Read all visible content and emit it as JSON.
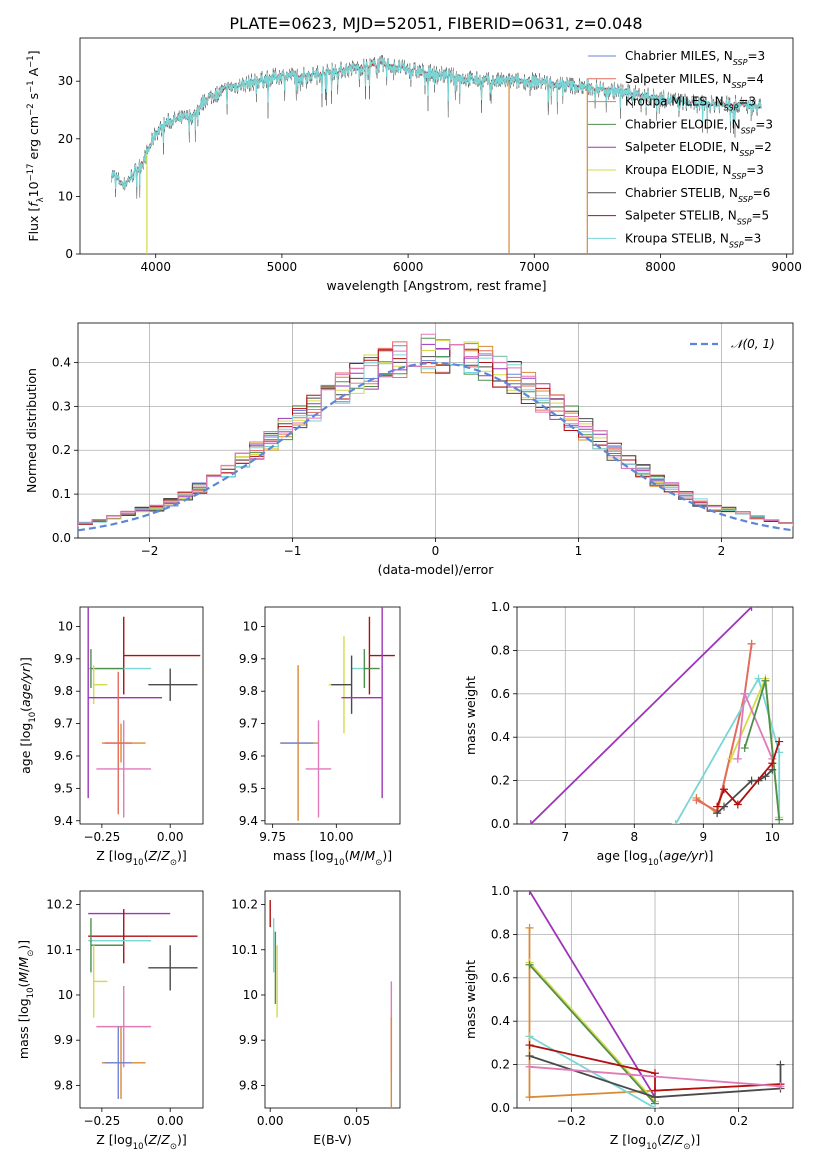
{
  "figure": {
    "title": "PLATE=0623, MJD=52051, FIBERID=0631, z=0.048"
  },
  "colors": {
    "Chabrier MILES": "#6f86d8",
    "Salpeter MILES": "#e56a5e",
    "Kroupa MILES": "#d98a35",
    "Chabrier ELODIE": "#4e8f4e",
    "Salpeter ELODIE": "#9d35b8",
    "Kroupa ELODIE": "#d6d94a",
    "Chabrier STELIB": "#4a4a4a",
    "Salpeter STELIB": "#b01010",
    "Kroupa STELIB": "#7ad6d6",
    "pink": "#e07ab8",
    "normal": "#5c86d8"
  },
  "chart_data": [
    {
      "id": "spectrum",
      "type": "line",
      "xlabel": "wavelength [Angstrom, rest frame]",
      "ylabel": "Flux [f_λ 10^-17 erg cm^-2 s^-1 A^-1]",
      "xlim": [
        3400,
        9050
      ],
      "ylim": [
        0,
        37.5
      ],
      "xticks": [
        4000,
        5000,
        6000,
        7000,
        8000,
        9000
      ],
      "yticks": [
        0,
        10,
        20,
        30
      ],
      "x_range": [
        3650,
        8800
      ],
      "continuum": [
        [
          3650,
          14
        ],
        [
          3750,
          12
        ],
        [
          3900,
          16
        ],
        [
          4000,
          21
        ],
        [
          4100,
          23
        ],
        [
          4300,
          24
        ],
        [
          4400,
          27
        ],
        [
          4600,
          29
        ],
        [
          4800,
          30
        ],
        [
          5000,
          31
        ],
        [
          5200,
          31
        ],
        [
          5500,
          32
        ],
        [
          5800,
          33
        ],
        [
          6000,
          32
        ],
        [
          6300,
          31
        ],
        [
          6600,
          30
        ],
        [
          7000,
          30
        ],
        [
          7400,
          29
        ],
        [
          7600,
          28.5
        ],
        [
          8000,
          27
        ],
        [
          8300,
          26
        ],
        [
          8600,
          26
        ],
        [
          8800,
          25.5
        ]
      ],
      "legend": [
        {
          "label": "Chabrier MILES, N",
          "sub": "SSP",
          "tail": "=3",
          "color": "#6f86d8"
        },
        {
          "label": "Salpeter MILES, N",
          "sub": "SSP",
          "tail": "=4",
          "color": "#e56a5e"
        },
        {
          "label": "Kroupa MILES, N",
          "sub": "SSP",
          "tail": "=3",
          "color": "#d98a35"
        },
        {
          "label": "Chabrier ELODIE, N",
          "sub": "SSP",
          "tail": "=3",
          "color": "#4e8f4e"
        },
        {
          "label": "Salpeter ELODIE, N",
          "sub": "SSP",
          "tail": "=2",
          "color": "#9d35b8"
        },
        {
          "label": "Kroupa ELODIE, N",
          "sub": "SSP",
          "tail": "=3",
          "color": "#d6d94a"
        },
        {
          "label": "Chabrier STELIB, N",
          "sub": "SSP",
          "tail": "=6",
          "color": "#4a4a4a"
        },
        {
          "label": "Salpeter STELIB, N",
          "sub": "SSP",
          "tail": "=5",
          "color": "#b01010"
        },
        {
          "label": "Kroupa STELIB, N",
          "sub": "SSP",
          "tail": "=3",
          "color": "#7ad6d6"
        }
      ],
      "dropouts": [
        {
          "x": 3930,
          "color": "#d6d94a"
        },
        {
          "x": 6800,
          "color": "#d98a35"
        },
        {
          "x": 7420,
          "color": "#d98a35"
        }
      ]
    },
    {
      "id": "residuals",
      "type": "histogram",
      "xlabel": "(data-model)/error",
      "ylabel": "Normed distribution",
      "xlim": [
        -2.5,
        2.5
      ],
      "ylim": [
        0,
        0.49
      ],
      "xticks": [
        -2,
        -1,
        0,
        1,
        2
      ],
      "yticks": [
        0.0,
        0.1,
        0.2,
        0.3,
        0.4
      ],
      "bin_width": 0.1,
      "legend_label": "𝒩(0, 1)",
      "grid": true
    },
    {
      "id": "age_vs_Z",
      "type": "errorbar",
      "xlabel": "Z [log10(Z/Z⊙)]",
      "ylabel": "age [log10(age/yr)]",
      "xlim": [
        -0.33,
        0.12
      ],
      "ylim": [
        9.39,
        10.06
      ],
      "xticks": [
        -0.25,
        0.0
      ],
      "xticklabels": [
        "−0.25",
        "0.00"
      ],
      "yticks": [
        9.4,
        9.5,
        9.6,
        9.7,
        9.8,
        9.9,
        10.0
      ],
      "points": [
        {
          "x": -0.17,
          "y": 9.91,
          "xerr": [
            0.0,
            0.28
          ],
          "yerr": 0.12,
          "color": "#b01010"
        },
        {
          "x": -0.27,
          "y": 9.87,
          "xerr": [
            0.03,
            0.2
          ],
          "yerr": 0.0,
          "color": "#7ad6d6"
        },
        {
          "x": -0.29,
          "y": 9.87,
          "xerr": [
            0.0,
            0.12
          ],
          "yerr": 0.06,
          "color": "#4e8f4e"
        },
        {
          "x": -0.28,
          "y": 9.82,
          "xerr": [
            0.0,
            0.05
          ],
          "yerr": 0.06,
          "color": "#d6d94a"
        },
        {
          "x": 0.0,
          "y": 9.82,
          "xerr": [
            0.08,
            0.1
          ],
          "yerr": 0.05,
          "color": "#4a4a4a"
        },
        {
          "x": -0.3,
          "y": 9.78,
          "xerr": [
            0.0,
            0.27
          ],
          "yerr": 0.31,
          "color": "#9d35b8"
        },
        {
          "x": -0.18,
          "y": 9.64,
          "xerr": [
            0.07,
            0.09
          ],
          "yerr": 0.06,
          "color": "#d98a35"
        },
        {
          "x": -0.17,
          "y": 9.56,
          "xerr": [
            0.1,
            0.1
          ],
          "yerr": 0.15,
          "color": "#e07ab8"
        },
        {
          "x": -0.19,
          "y": 9.64,
          "xerr": [
            0.05,
            0.05
          ],
          "yerr": 0.22,
          "color": "#e56a5e"
        }
      ]
    },
    {
      "id": "age_vs_mass",
      "type": "errorbar",
      "xlabel": "mass [log10(M/M⊙)]",
      "ylabel": "",
      "xlim": [
        9.72,
        10.25
      ],
      "ylim": [
        9.39,
        10.06
      ],
      "xticks": [
        9.75,
        10.0
      ],
      "xticklabels": [
        "9.75",
        "10.00"
      ],
      "yticks": [
        9.4,
        9.5,
        9.6,
        9.7,
        9.8,
        9.9,
        10.0
      ],
      "points": [
        {
          "x": 10.13,
          "y": 9.91,
          "xerr": [
            0.0,
            0.1
          ],
          "yerr": 0.12,
          "color": "#b01010"
        },
        {
          "x": 10.12,
          "y": 9.87,
          "xerr": [
            0.06,
            0.0
          ],
          "yerr": 0.0,
          "color": "#7ad6d6"
        },
        {
          "x": 10.11,
          "y": 9.87,
          "xerr": [
            0.0,
            0.06
          ],
          "yerr": 0.06,
          "color": "#4e8f4e"
        },
        {
          "x": 10.03,
          "y": 9.82,
          "xerr": [
            0.06,
            0.0
          ],
          "yerr": 0.15,
          "color": "#d6d94a"
        },
        {
          "x": 10.06,
          "y": 9.82,
          "xerr": [
            0.08,
            0.0
          ],
          "yerr": 0.09,
          "color": "#4a4a4a"
        },
        {
          "x": 10.18,
          "y": 9.78,
          "xerr": [
            0.16,
            0.0
          ],
          "yerr": 0.31,
          "color": "#9d35b8"
        },
        {
          "x": 9.85,
          "y": 9.64,
          "xerr": [
            0.07,
            0.08
          ],
          "yerr": 0.24,
          "color": "#d98a35"
        },
        {
          "x": 9.93,
          "y": 9.56,
          "xerr": [
            0.05,
            0.05
          ],
          "yerr": 0.15,
          "color": "#e07ab8"
        },
        {
          "x": 9.85,
          "y": 9.64,
          "xerr": [
            0.07,
            0.06
          ],
          "yerr": 0.0,
          "color": "#6f86d8"
        }
      ]
    },
    {
      "id": "weight_vs_age",
      "type": "line",
      "xlabel": "age [log10(age/yr)]",
      "ylabel": "mass weight",
      "xlim": [
        6.3,
        10.3
      ],
      "ylim": [
        0,
        1.0
      ],
      "xticks": [
        7,
        8,
        9,
        10
      ],
      "yticks": [
        0.0,
        0.2,
        0.4,
        0.6,
        0.8,
        1.0
      ],
      "grid": true,
      "series": [
        {
          "color": "#9d35b8",
          "points": [
            [
              6.5,
              0.0
            ],
            [
              9.7,
              1.0
            ]
          ]
        },
        {
          "color": "#d98a35",
          "points": [
            [
              8.9,
              0.12
            ],
            [
              9.2,
              0.05
            ],
            [
              9.6,
              0.6
            ],
            [
              9.7,
              0.83
            ]
          ]
        },
        {
          "color": "#e56a5e",
          "points": [
            [
              8.9,
              0.11
            ],
            [
              9.2,
              0.06
            ],
            [
              9.6,
              0.6
            ],
            [
              9.7,
              0.83
            ]
          ]
        },
        {
          "color": "#7ad6d6",
          "points": [
            [
              8.6,
              0.0
            ],
            [
              9.8,
              0.67
            ],
            [
              10.1,
              0.33
            ],
            [
              10.1,
              0.03
            ]
          ]
        },
        {
          "color": "#d6d94a",
          "points": [
            [
              9.4,
              0.3
            ],
            [
              9.9,
              0.67
            ],
            [
              10.1,
              0.03
            ]
          ]
        },
        {
          "color": "#e07ab8",
          "points": [
            [
              9.5,
              0.3
            ],
            [
              9.6,
              0.6
            ],
            [
              10.0,
              0.3
            ]
          ]
        },
        {
          "color": "#4e8f4e",
          "points": [
            [
              9.6,
              0.35
            ],
            [
              9.9,
              0.66
            ],
            [
              10.1,
              0.02
            ]
          ]
        },
        {
          "color": "#4a4a4a",
          "points": [
            [
              9.2,
              0.05
            ],
            [
              9.3,
              0.08
            ],
            [
              9.7,
              0.2
            ],
            [
              9.8,
              0.2
            ],
            [
              9.9,
              0.22
            ],
            [
              10.0,
              0.25
            ]
          ]
        },
        {
          "color": "#b01010",
          "points": [
            [
              9.2,
              0.08
            ],
            [
              9.3,
              0.16
            ],
            [
              9.5,
              0.09
            ],
            [
              10.0,
              0.28
            ],
            [
              10.1,
              0.38
            ]
          ]
        }
      ]
    },
    {
      "id": "mass_vs_Z",
      "type": "errorbar",
      "xlabel": "Z [log10(Z/Z⊙)]",
      "ylabel": "mass [log10(M/M⊙)]",
      "xlim": [
        -0.33,
        0.12
      ],
      "ylim": [
        9.75,
        10.23
      ],
      "xticks": [
        -0.25,
        0.0
      ],
      "xticklabels": [
        "−0.25",
        "0.00"
      ],
      "yticks": [
        9.8,
        9.9,
        10.0,
        10.1,
        10.2
      ],
      "points": [
        {
          "x": -0.3,
          "y": 10.18,
          "xerr": [
            0.0,
            0.3
          ],
          "yerr": 0.0,
          "color": "#9d35b8"
        },
        {
          "x": -0.17,
          "y": 10.13,
          "xerr": [
            0.13,
            0.27
          ],
          "yerr": 0.06,
          "color": "#b01010"
        },
        {
          "x": -0.27,
          "y": 10.12,
          "xerr": [
            0.03,
            0.2
          ],
          "yerr": 0.0,
          "color": "#7ad6d6"
        },
        {
          "x": -0.29,
          "y": 10.11,
          "xerr": [
            0.0,
            0.12
          ],
          "yerr": 0.06,
          "color": "#4e8f4e"
        },
        {
          "x": 0.0,
          "y": 10.06,
          "xerr": [
            0.08,
            0.1
          ],
          "yerr": 0.05,
          "color": "#4a4a4a"
        },
        {
          "x": -0.28,
          "y": 10.03,
          "xerr": [
            0.0,
            0.05
          ],
          "yerr": 0.08,
          "color": "#d6d94a"
        },
        {
          "x": -0.17,
          "y": 9.93,
          "xerr": [
            0.1,
            0.1
          ],
          "yerr": 0.09,
          "color": "#e07ab8"
        },
        {
          "x": -0.18,
          "y": 9.85,
          "xerr": [
            0.07,
            0.09
          ],
          "yerr": 0.08,
          "color": "#d98a35"
        },
        {
          "x": -0.19,
          "y": 9.85,
          "xerr": [
            0.05,
            0.05
          ],
          "yerr": 0.08,
          "color": "#6f86d8"
        }
      ]
    },
    {
      "id": "mass_vs_ebv",
      "type": "errorbar",
      "xlabel": "E(B-V)",
      "ylabel": "",
      "xlim": [
        -0.003,
        0.075
      ],
      "ylim": [
        9.75,
        10.23
      ],
      "xticks": [
        0.0,
        0.05
      ],
      "xticklabels": [
        "0.00",
        "0.05"
      ],
      "yticks": [
        9.8,
        9.9,
        10.0,
        10.1,
        10.2
      ],
      "points": [
        {
          "x": 0.0,
          "y": 10.18,
          "xerr": [
            0,
            0
          ],
          "yerr": 0.03,
          "color": "#b01010"
        },
        {
          "x": 0.002,
          "y": 10.11,
          "xerr": [
            0,
            0
          ],
          "yerr": 0.06,
          "color": "#7ad6d6"
        },
        {
          "x": 0.003,
          "y": 10.06,
          "xerr": [
            0,
            0
          ],
          "yerr": 0.08,
          "color": "#4e8f4e"
        },
        {
          "x": 0.004,
          "y": 10.03,
          "xerr": [
            0,
            0
          ],
          "yerr": 0.08,
          "color": "#d6d94a"
        },
        {
          "x": 0.07,
          "y": 9.93,
          "xerr": [
            0,
            0
          ],
          "yerr": 0.1,
          "color": "#e07ab8"
        },
        {
          "x": 0.07,
          "y": 9.85,
          "xerr": [
            0,
            0
          ],
          "yerr": 0.1,
          "color": "#d98a35"
        }
      ]
    },
    {
      "id": "weight_vs_Z",
      "type": "line",
      "xlabel": "Z [log10(Z/Z⊙)]",
      "ylabel": "mass weight",
      "xlim": [
        -0.33,
        0.33
      ],
      "ylim": [
        0,
        1.0
      ],
      "xticks": [
        -0.2,
        0.0,
        0.2
      ],
      "xticklabels": [
        "−0.2",
        "0.0",
        "0.2"
      ],
      "yticks": [
        0.0,
        0.2,
        0.4,
        0.6,
        0.8,
        1.0
      ],
      "grid": true,
      "series": [
        {
          "color": "#9d35b8",
          "points": [
            [
              -0.3,
              1.0
            ],
            [
              0.0,
              0.05
            ]
          ]
        },
        {
          "color": "#d98a35",
          "points": [
            [
              -0.3,
              0.83
            ],
            [
              -0.3,
              0.05
            ],
            [
              0.0,
              0.08
            ],
            [
              0.3,
              0.11
            ]
          ]
        },
        {
          "color": "#d6d94a",
          "points": [
            [
              -0.3,
              0.67
            ],
            [
              0.0,
              0.03
            ]
          ]
        },
        {
          "color": "#4e8f4e",
          "points": [
            [
              -0.3,
              0.66
            ],
            [
              0.0,
              0.02
            ]
          ]
        },
        {
          "color": "#7ad6d6",
          "points": [
            [
              -0.3,
              0.33
            ],
            [
              0.0,
              0.0
            ]
          ]
        },
        {
          "color": "#b01010",
          "points": [
            [
              -0.3,
              0.29
            ],
            [
              0.0,
              0.16
            ],
            [
              0.0,
              0.08
            ],
            [
              0.3,
              0.11
            ]
          ]
        },
        {
          "color": "#4a4a4a",
          "points": [
            [
              -0.3,
              0.24
            ],
            [
              0.0,
              0.05
            ],
            [
              0.3,
              0.09
            ],
            [
              0.3,
              0.2
            ]
          ]
        },
        {
          "color": "#e07ab8",
          "points": [
            [
              -0.3,
              0.19
            ],
            [
              0.3,
              0.1
            ]
          ]
        }
      ]
    }
  ]
}
